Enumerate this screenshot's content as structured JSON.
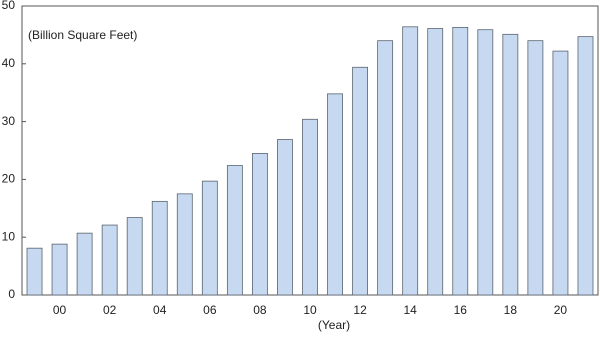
{
  "chart_data": {
    "type": "bar",
    "y_label": "(Billion Square Feet)",
    "x_label": "(Year)",
    "categories": [
      null,
      "00",
      null,
      "02",
      null,
      "04",
      null,
      "06",
      null,
      "08",
      null,
      "10",
      null,
      "12",
      null,
      "14",
      null,
      "16",
      null,
      "18",
      null,
      "20",
      null
    ],
    "values": [
      8.1,
      8.8,
      10.7,
      12.1,
      13.4,
      16.2,
      17.5,
      19.7,
      22.4,
      24.5,
      26.9,
      30.4,
      34.8,
      39.4,
      44.0,
      46.4,
      46.1,
      46.3,
      45.9,
      45.1,
      44.0,
      42.2,
      44.7
    ],
    "color": "#c6d9f0",
    "ylim": [
      0,
      50
    ],
    "yticks": [
      0,
      10,
      20,
      30,
      40,
      50
    ],
    "grid": false
  }
}
